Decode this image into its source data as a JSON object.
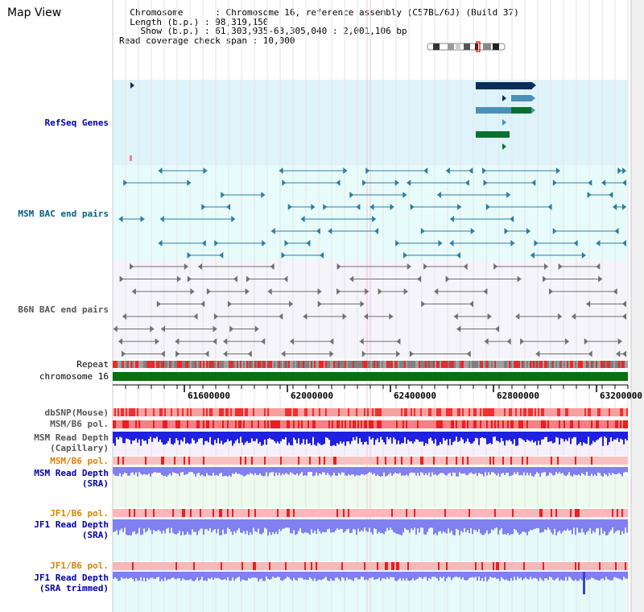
{
  "header": {
    "title": "Map View",
    "info_lines": [
      "  Chromosome      : Chromosome 16, reference assembly (C57BL/6J) (Build 37)",
      "  Length (b.p.) : 98,319,150",
      "    Show (b.p.) : 61,303,935-63,305,040 : 2,001,106 bp",
      "Read coverage check span : 10,000"
    ]
  },
  "tracks": {
    "refseq": "RefSeq Genes",
    "msm_bac": "MSM BAC end pairs",
    "b6n_bac": "B6N BAC end pairs",
    "repeat": "Repeat",
    "chromosome": "chromosome 16",
    "dbsnp": "dbSNP(Mouse)",
    "msm_b6_pol_1": "MSM/B6 pol.",
    "msm_depth_cap_1": "MSM Read Depth",
    "msm_depth_cap_2": "(Capillary)",
    "msm_b6_pol_2": "MSM/B6 pol.",
    "msm_depth_sra_1": "MSM Read Depth",
    "msm_depth_sra_2": "(SRA)",
    "jf1_b6_pol_1": "JF1/B6 pol.",
    "jf1_depth_sra_1": "JF1 Read Depth",
    "jf1_depth_sra_2": "(SRA)",
    "jf1_b6_pol_2": "JF1/B6 pol.",
    "jf1_depth_trim_1": "JF1 Read Depth",
    "jf1_depth_trim_2": "(SRA trimmed)"
  },
  "ruler": {
    "ticks": [
      "61600000",
      "62000000",
      "62400000",
      "62800000",
      "63200000"
    ]
  },
  "colors": {
    "refseq_bg": "#dff3fb",
    "msm_bg": "#e8fbfb",
    "b6n_bg": "#f4f4fa",
    "gene_dark": "#0a2d5c",
    "gene_light": "#4a8fb8",
    "gene_green": "#0a7030",
    "chromosome_green": "#0a7010",
    "snp_red": "#f05050",
    "depth_blue": "#2020e0",
    "depth_light": "#8080f0"
  }
}
